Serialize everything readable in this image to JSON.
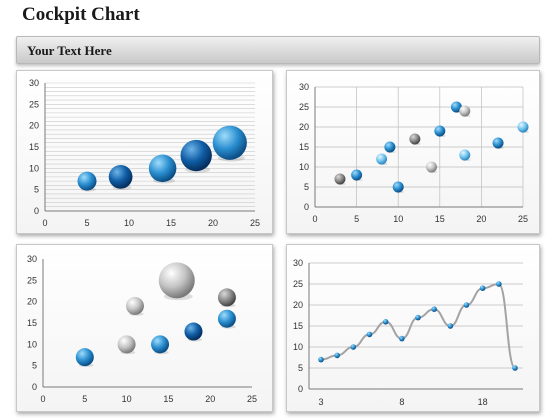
{
  "header": {
    "title": "Cockpit Chart",
    "banner_text": "Your Text Here"
  },
  "chart_data": [
    {
      "type": "scatter",
      "title": "",
      "xlim": [
        0,
        25
      ],
      "ylim": [
        0,
        30
      ],
      "xticks": [
        0,
        5,
        10,
        15,
        20,
        25
      ],
      "yticks": [
        0,
        5,
        10,
        15,
        20,
        25,
        30
      ],
      "grid": "horizontal-dense",
      "points": [
        {
          "x": 5,
          "y": 7,
          "size": 1.0,
          "color": "blue"
        },
        {
          "x": 9,
          "y": 8,
          "size": 1.25,
          "color": "darkblue"
        },
        {
          "x": 14,
          "y": 10,
          "size": 1.45,
          "color": "blue"
        },
        {
          "x": 18,
          "y": 13,
          "size": 1.65,
          "color": "darkblue"
        },
        {
          "x": 22,
          "y": 16,
          "size": 1.8,
          "color": "blue"
        }
      ]
    },
    {
      "type": "scatter",
      "title": "",
      "xlim": [
        0,
        25
      ],
      "ylim": [
        0,
        30
      ],
      "xticks": [
        0,
        5,
        10,
        15,
        20,
        25
      ],
      "yticks": [
        0,
        5,
        10,
        15,
        20,
        25,
        30
      ],
      "grid": "both",
      "points": [
        {
          "x": 3,
          "y": 7,
          "color": "gray"
        },
        {
          "x": 5,
          "y": 8,
          "color": "blue"
        },
        {
          "x": 8,
          "y": 12,
          "color": "lightblue"
        },
        {
          "x": 9,
          "y": 15,
          "color": "blue"
        },
        {
          "x": 10,
          "y": 5,
          "color": "blue"
        },
        {
          "x": 12,
          "y": 17,
          "color": "gray"
        },
        {
          "x": 14,
          "y": 10,
          "color": "silver"
        },
        {
          "x": 15,
          "y": 19,
          "color": "blue"
        },
        {
          "x": 17,
          "y": 25,
          "color": "blue"
        },
        {
          "x": 18,
          "y": 24,
          "color": "silver"
        },
        {
          "x": 18,
          "y": 13,
          "color": "lightblue"
        },
        {
          "x": 22,
          "y": 16,
          "color": "blue"
        },
        {
          "x": 25,
          "y": 20,
          "color": "lightblue"
        }
      ]
    },
    {
      "type": "scatter",
      "title": "",
      "xlim": [
        0,
        25
      ],
      "ylim": [
        0,
        30
      ],
      "xticks": [
        0,
        5,
        10,
        15,
        20,
        25
      ],
      "yticks": [
        0,
        5,
        10,
        15,
        20,
        25,
        30
      ],
      "grid": "none",
      "points": [
        {
          "x": 5,
          "y": 7,
          "size": 1.0,
          "color": "blue"
        },
        {
          "x": 10,
          "y": 10,
          "size": 1.0,
          "color": "silver"
        },
        {
          "x": 11,
          "y": 19,
          "size": 1.0,
          "color": "silver"
        },
        {
          "x": 14,
          "y": 10,
          "size": 1.0,
          "color": "blue"
        },
        {
          "x": 16,
          "y": 25,
          "size": 2.0,
          "color": "silver"
        },
        {
          "x": 18,
          "y": 13,
          "size": 1.0,
          "color": "darkblue"
        },
        {
          "x": 22,
          "y": 16,
          "size": 1.0,
          "color": "blue"
        },
        {
          "x": 22,
          "y": 21,
          "size": 1.0,
          "color": "gray"
        }
      ]
    },
    {
      "type": "line",
      "title": "",
      "ylim": [
        0,
        30
      ],
      "yticks": [
        0,
        5,
        10,
        15,
        20,
        25,
        30
      ],
      "grid": "horizontal",
      "xtick_labels": [
        "3",
        "8",
        "18"
      ],
      "xtick_index": [
        0,
        5,
        10
      ],
      "values": [
        7,
        8,
        10,
        13,
        16,
        12,
        17,
        19,
        15,
        20,
        24,
        25,
        5
      ]
    }
  ]
}
